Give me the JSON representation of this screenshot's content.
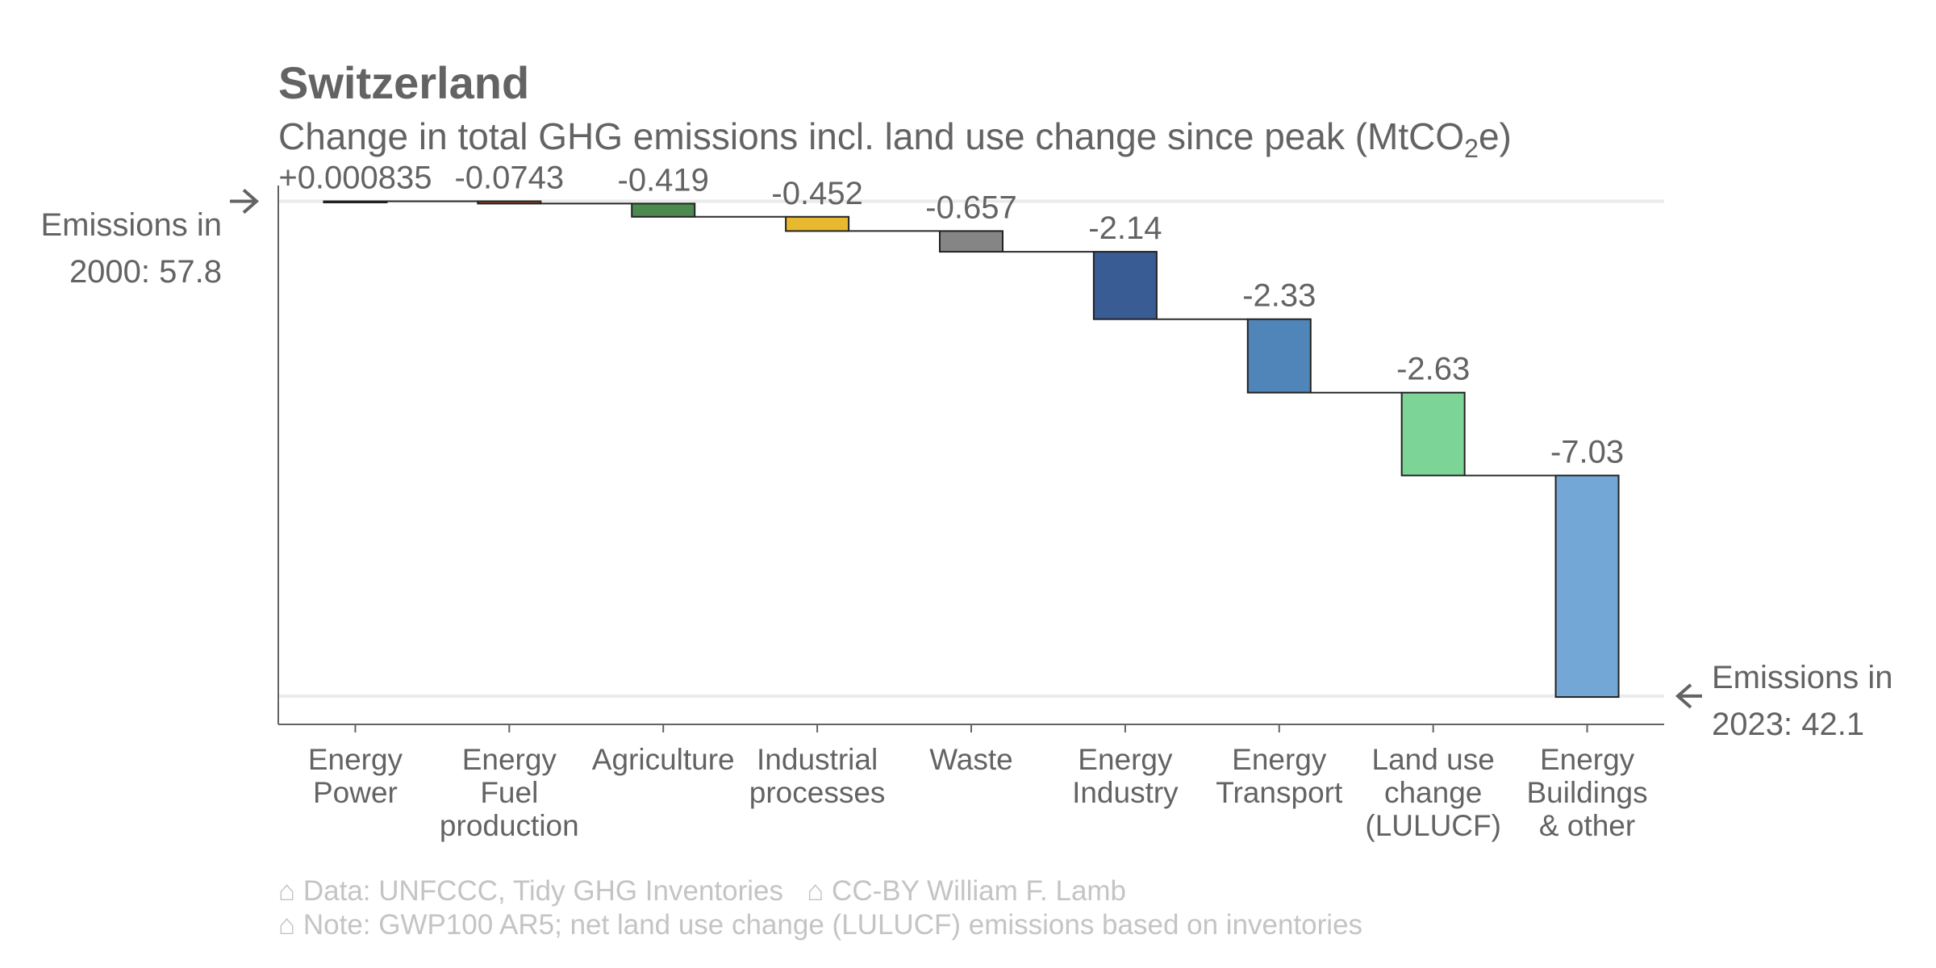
{
  "chart_data": {
    "type": "waterfall",
    "title": "Switzerland",
    "subtitle": {
      "prefix": "Change in total GHG emissions incl. land use change since peak (MtCO",
      "subscript": "2",
      "suffix": "e)"
    },
    "start": {
      "value": 57.8,
      "label_line1": "Emissions in",
      "label_line2": "2000: 57.8"
    },
    "end": {
      "value": 42.1,
      "label_line1": "Emissions in",
      "label_line2": "2023: 42.1"
    },
    "y_range": [
      41.2,
      58.3
    ],
    "grid": "horizontal lines at start and end values",
    "categories": [
      {
        "label_lines": [
          "Energy",
          "Power"
        ],
        "value": 0.000835,
        "value_label": "+0.000835",
        "color": "#e0622e"
      },
      {
        "label_lines": [
          "Energy",
          "Fuel",
          "production"
        ],
        "value": -0.0743,
        "value_label": "-0.0743",
        "color": "#b5532a"
      },
      {
        "label_lines": [
          "Agriculture"
        ],
        "value": -0.419,
        "value_label": "-0.419",
        "color": "#4c8a50"
      },
      {
        "label_lines": [
          "Industrial",
          "processes"
        ],
        "value": -0.452,
        "value_label": "-0.452",
        "color": "#e8b82e"
      },
      {
        "label_lines": [
          "Waste"
        ],
        "value": -0.657,
        "value_label": "-0.657",
        "color": "#858585"
      },
      {
        "label_lines": [
          "Energy",
          "Industry"
        ],
        "value": -2.14,
        "value_label": "-2.14",
        "color": "#385c93"
      },
      {
        "label_lines": [
          "Energy",
          "Transport"
        ],
        "value": -2.33,
        "value_label": "-2.33",
        "color": "#4f85b8"
      },
      {
        "label_lines": [
          "Land use",
          "change",
          "(LULUCF)"
        ],
        "value": -2.63,
        "value_label": "-2.63",
        "color": "#7dd497"
      },
      {
        "label_lines": [
          "Energy",
          "Buildings",
          "& other"
        ],
        "value": -7.03,
        "value_label": "-7.03",
        "color": "#72a7d6"
      }
    ]
  },
  "footer": {
    "line1": "⌂ Data: UNFCCC, Tidy GHG Inventories   ⌂ CC-BY William F. Lamb",
    "line2": "⌂ Note: GWP100 AR5; net land use change (LULUCF) emissions based on inventories"
  },
  "colors": {
    "text": "#636363",
    "footer_text": "#c4c4c4",
    "axis": "#636363",
    "grid": "#ebebeb",
    "connector": "#2a2a2a",
    "bar_outline": "#222222"
  }
}
